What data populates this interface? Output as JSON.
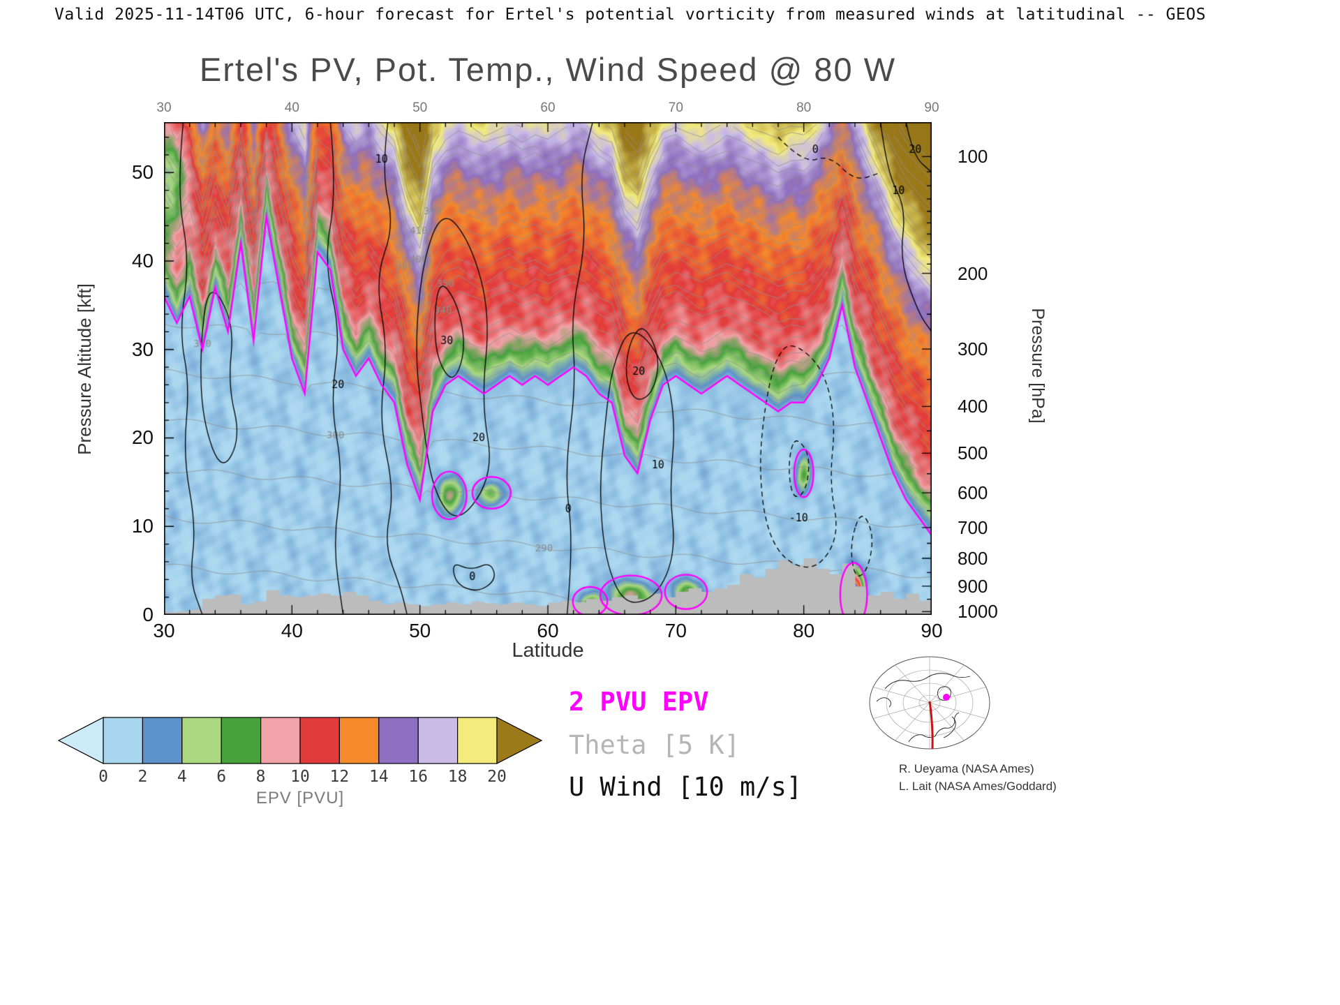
{
  "header": {
    "text": "Valid 2025-11-14T06 UTC, 6-hour forecast for Ertel's potential vorticity from measured winds at latitudinal -- GEOS"
  },
  "title": "Ertel's PV, Pot. Temp., Wind Speed @ 80 W",
  "axes": {
    "x": {
      "label": "Latitude",
      "min": 30,
      "max": 90,
      "major_ticks": [
        30,
        40,
        50,
        60,
        70,
        80,
        90
      ],
      "minor_step": 2
    },
    "y_left": {
      "label": "Pressure Altitude [kft]",
      "min": 0,
      "max": 55.7,
      "major_ticks": [
        0,
        10,
        20,
        30,
        40,
        50
      ],
      "minor_step": 2
    },
    "y_right": {
      "label": "Pressure [hPa]",
      "major_ticks": [
        100,
        200,
        300,
        400,
        500,
        600,
        700,
        800,
        900,
        1000
      ],
      "minor_ticks": [
        110,
        120,
        130,
        140,
        150,
        160,
        170,
        180,
        190,
        250,
        350,
        450,
        550,
        650,
        750,
        850,
        950
      ]
    }
  },
  "colorbar": {
    "label": "EPV [PVU]",
    "tick_values": [
      0,
      2,
      4,
      6,
      8,
      10,
      12,
      14,
      16,
      18,
      20
    ],
    "band_colors": [
      "#a9d6ef",
      "#5d92cb",
      "#abd881",
      "#47a23d",
      "#f2a3a9",
      "#e23b3b",
      "#f58a2c",
      "#8f6fc0",
      "#cabce6",
      "#f3ec7c"
    ],
    "under_color": "#cdeaf8",
    "over_color": "#9c7a1a"
  },
  "legend": {
    "items": [
      {
        "label": "2 PVU EPV",
        "color": "#ff00ff",
        "bold": true
      },
      {
        "label": "Theta [5 K]",
        "color": "#b5b5b5",
        "bold": false
      },
      {
        "label": "U Wind [10 m/s]",
        "color": "#111111",
        "bold": false
      }
    ]
  },
  "credits": {
    "line1": "R. Ueyama (NASA Ames)",
    "line2": "L. Lait (NASA Ames/Goddard)"
  },
  "map_inset": {
    "cross_section_color": "#cc1111",
    "location_color": "#ff00ff"
  },
  "chart_data": {
    "type": "heatmap",
    "title": "Ertel's PV, Pot. Temp., Wind Speed @ 80 W",
    "valid_time": "2025-11-14T06 UTC",
    "forecast": "6-hour forecast",
    "cross_section_longitude": "80 W",
    "xlabel": "Latitude",
    "x_range": [
      30,
      90
    ],
    "ylabel_left": "Pressure Altitude [kft]",
    "y_left_range_kft": [
      0,
      55.7
    ],
    "ylabel_right": "Pressure [hPa]",
    "y_right_ticks_hpa": [
      100,
      200,
      300,
      400,
      500,
      600,
      700,
      800,
      900,
      1000
    ],
    "fill_quantity": "Ertel potential vorticity EPV [PVU]",
    "fill_levels_pvu": [
      0,
      2,
      4,
      6,
      8,
      10,
      12,
      14,
      16,
      18,
      20
    ],
    "overlays": [
      {
        "name": "2 PVU EPV contour",
        "color": "#ff00ff"
      },
      {
        "name": "Theta contours",
        "interval": "5 K",
        "color": "#b5b5b5"
      },
      {
        "name": "U wind contours",
        "interval": "10 m/s",
        "color": "#000000"
      }
    ],
    "grid": {
      "lat_start": 30,
      "lat_step": 1,
      "n": 61
    },
    "tropopause_2pvu": {
      "alt_kft": [
        36,
        33,
        36,
        30,
        37,
        32,
        42,
        31,
        45,
        37,
        29,
        25,
        41,
        39,
        30,
        27,
        29,
        26,
        24,
        17,
        13,
        23,
        26,
        27,
        26,
        25,
        26,
        27,
        26,
        27,
        26,
        27,
        28,
        27,
        25,
        24,
        18,
        16,
        22,
        26,
        27,
        26,
        25,
        26,
        27,
        26,
        25,
        24,
        23,
        24,
        24,
        26,
        29,
        35,
        28,
        24,
        20,
        16,
        13,
        11,
        9
      ]
    },
    "terrain_alt_kft": [
      0.3,
      0.4,
      0.6,
      1.8,
      2.2,
      2.3,
      1.2,
      1.5,
      2.8,
      2.2,
      2.0,
      2.2,
      2.4,
      2.2,
      2.6,
      2.2,
      1.6,
      1.2,
      1.4,
      1.2,
      1.0,
      1.2,
      1.4,
      1.2,
      1.5,
      1.3,
      1.2,
      1.4,
      1.2,
      1.0,
      1.4,
      1.6,
      1.4,
      1.8,
      1.6,
      2.0,
      2.2,
      1.8,
      2.4,
      2.0,
      2.6,
      3.0,
      2.6,
      3.0,
      3.4,
      4.6,
      4.2,
      5.2,
      6.2,
      5.6,
      6.4,
      5.2,
      4.6,
      5.8,
      3.2,
      2.2,
      2.6,
      1.8,
      2.4,
      1.6,
      1.8
    ],
    "pv_anomalies": [
      {
        "lat": 52.3,
        "alt_kft": 13.5,
        "amp_pvu": 7,
        "w_lat": 0.9,
        "w_alt": 1.8
      },
      {
        "lat": 55.6,
        "alt_kft": 13.8,
        "amp_pvu": 5,
        "w_lat": 1.0,
        "w_alt": 1.2
      },
      {
        "lat": 63.3,
        "alt_kft": 1.5,
        "amp_pvu": 5,
        "w_lat": 0.9,
        "w_alt": 1.1
      },
      {
        "lat": 66.5,
        "alt_kft": 2.2,
        "amp_pvu": 7,
        "w_lat": 1.6,
        "w_alt": 1.5
      },
      {
        "lat": 70.8,
        "alt_kft": 2.6,
        "amp_pvu": 6,
        "w_lat": 1.1,
        "w_alt": 1.3
      },
      {
        "lat": 80.0,
        "alt_kft": 16.0,
        "amp_pvu": 6,
        "w_lat": 0.5,
        "w_alt": 1.8
      },
      {
        "lat": 83.9,
        "alt_kft": 2.3,
        "amp_pvu": 18,
        "w_lat": 0.7,
        "w_alt": 2.4
      },
      {
        "lat": 30.3,
        "alt_kft": 50.0,
        "amp_pvu": -7,
        "w_lat": 1.6,
        "w_alt": 7.0
      }
    ],
    "theta": {
      "surface_K": 280,
      "lapse_K_per_kft": 0.91,
      "lat_gradient_K_per_deg": 0.1,
      "stratosphere_extra_K_per_kft": 3.0,
      "level_min_K": 280,
      "level_max_K": 460,
      "level_step_K": 5,
      "labeled": [
        {
          "level": 410,
          "lat": 49.9
        },
        {
          "level": 400,
          "lat": 49.9
        },
        {
          "level": 390,
          "lat": 51.0
        },
        {
          "level": 380,
          "lat": 48.8
        },
        {
          "level": 350,
          "lat": 52.0
        },
        {
          "level": 340,
          "lat": 51.8
        },
        {
          "level": 310,
          "lat": 33.0
        },
        {
          "level": 300,
          "lat": 43.4
        },
        {
          "level": 290,
          "lat": 59.7
        }
      ]
    },
    "wind_contours": [
      {
        "label": "10",
        "label_at": [
          47.0,
          51.5
        ],
        "dashed": false,
        "closed": false,
        "pts": [
          [
            47.5,
            55.7
          ],
          [
            47.0,
            50
          ],
          [
            48.0,
            44
          ],
          [
            46.5,
            38
          ],
          [
            47.5,
            30
          ],
          [
            46.8,
            22
          ],
          [
            48.0,
            14
          ],
          [
            47.2,
            8
          ],
          [
            48.5,
            3
          ],
          [
            49.0,
            0
          ]
        ]
      },
      {
        "label": "20",
        "label_at": [
          54.6,
          20
        ],
        "dashed": false,
        "closed": true,
        "pts": [
          [
            51.8,
            46
          ],
          [
            54.0,
            42
          ],
          [
            55.5,
            34
          ],
          [
            54.8,
            24
          ],
          [
            55.8,
            16
          ],
          [
            53.0,
            10
          ],
          [
            51.0,
            14
          ],
          [
            50.2,
            22
          ],
          [
            49.6,
            30
          ],
          [
            50.2,
            40
          ]
        ]
      },
      {
        "label": "30",
        "label_at": [
          52.1,
          31
        ],
        "dashed": false,
        "closed": true,
        "pts": [
          [
            51.6,
            38
          ],
          [
            53.0,
            35
          ],
          [
            53.6,
            30
          ],
          [
            52.6,
            26
          ],
          [
            51.3,
            29
          ],
          [
            51.1,
            34
          ]
        ]
      },
      {
        "label": "0",
        "label_at": [
          61.6,
          12
        ],
        "dashed": false,
        "closed": false,
        "pts": [
          [
            61.5,
            0
          ],
          [
            62.0,
            8
          ],
          [
            61.3,
            16
          ],
          [
            62.2,
            26
          ],
          [
            61.8,
            34
          ],
          [
            63.0,
            42
          ],
          [
            62.5,
            50
          ],
          [
            63.5,
            55.7
          ]
        ]
      },
      {
        "label": "10",
        "label_at": [
          68.6,
          17
        ],
        "dashed": false,
        "closed": true,
        "pts": [
          [
            66.5,
            33
          ],
          [
            69.0,
            29
          ],
          [
            70.0,
            22
          ],
          [
            69.5,
            14
          ],
          [
            70.0,
            7
          ],
          [
            68.5,
            2
          ],
          [
            66.0,
            1
          ],
          [
            64.5,
            6
          ],
          [
            64.0,
            14
          ],
          [
            64.5,
            22
          ],
          [
            65.0,
            28
          ]
        ]
      },
      {
        "label": "20",
        "label_at": [
          67.1,
          27.5
        ],
        "dashed": false,
        "closed": true,
        "pts": [
          [
            67.5,
            33
          ],
          [
            68.8,
            29
          ],
          [
            68.2,
            25
          ],
          [
            66.8,
            24
          ],
          [
            66.0,
            27
          ],
          [
            66.4,
            31
          ]
        ]
      },
      {
        "label": "-10",
        "label_at": [
          79.6,
          11
        ],
        "dashed": true,
        "closed": true,
        "pts": [
          [
            79.0,
            31
          ],
          [
            81.5,
            28
          ],
          [
            82.5,
            22
          ],
          [
            82.0,
            15
          ],
          [
            82.8,
            9
          ],
          [
            81.0,
            5
          ],
          [
            78.5,
            6
          ],
          [
            77.0,
            10
          ],
          [
            76.5,
            17
          ],
          [
            77.0,
            24
          ],
          [
            77.8,
            29
          ]
        ]
      },
      {
        "label": "",
        "label_at": null,
        "dashed": true,
        "closed": true,
        "pts": [
          [
            79.5,
            20
          ],
          [
            80.5,
            18
          ],
          [
            80.2,
            14
          ],
          [
            79.2,
            13
          ],
          [
            78.8,
            16
          ],
          [
            79.0,
            19
          ]
        ]
      },
      {
        "label": "10",
        "label_at": [
          87.4,
          48
        ],
        "dashed": false,
        "closed": false,
        "pts": [
          [
            86.0,
            55.7
          ],
          [
            86.5,
            50
          ],
          [
            88.0,
            46
          ],
          [
            87.5,
            40
          ],
          [
            89.0,
            34
          ],
          [
            90.0,
            32
          ]
        ]
      },
      {
        "label": "20",
        "label_at": [
          88.7,
          52.6
        ],
        "dashed": false,
        "closed": false,
        "pts": [
          [
            88.0,
            55.7
          ],
          [
            88.5,
            52
          ],
          [
            90.0,
            50
          ]
        ]
      },
      {
        "label": "",
        "label_at": null,
        "dashed": false,
        "closed": false,
        "pts": [
          [
            31.5,
            55.7
          ],
          [
            31.0,
            48
          ],
          [
            32.0,
            40
          ],
          [
            31.2,
            32
          ],
          [
            32.0,
            26
          ],
          [
            31.5,
            18
          ],
          [
            32.5,
            10
          ],
          [
            32.0,
            4
          ],
          [
            33.0,
            0
          ]
        ]
      },
      {
        "label": "",
        "label_at": null,
        "dashed": false,
        "closed": true,
        "pts": [
          [
            33.5,
            38
          ],
          [
            35.5,
            33
          ],
          [
            35.0,
            26
          ],
          [
            36.0,
            20
          ],
          [
            34.5,
            16
          ],
          [
            33.0,
            22
          ],
          [
            32.8,
            30
          ]
        ]
      },
      {
        "label": "20",
        "label_at": [
          43.6,
          26
        ],
        "dashed": false,
        "closed": false,
        "pts": [
          [
            43.0,
            55.7
          ],
          [
            43.5,
            48
          ],
          [
            42.5,
            40
          ],
          [
            43.8,
            32
          ],
          [
            43.0,
            24
          ],
          [
            44.0,
            16
          ],
          [
            43.2,
            8
          ],
          [
            44.0,
            0
          ]
        ]
      },
      {
        "label": "0",
        "label_at": [
          54.1,
          4.3
        ],
        "dashed": false,
        "closed": true,
        "pts": [
          [
            52.5,
            6
          ],
          [
            54.0,
            5
          ],
          [
            55.5,
            6
          ],
          [
            56.0,
            4
          ],
          [
            54.5,
            2.5
          ],
          [
            52.8,
            3.5
          ]
        ]
      },
      {
        "label": "0",
        "label_at": [
          80.9,
          52.6
        ],
        "dashed": true,
        "closed": false,
        "pts": [
          [
            78.0,
            54
          ],
          [
            80.0,
            51
          ],
          [
            82.0,
            52
          ],
          [
            84.0,
            49
          ],
          [
            86.0,
            50
          ]
        ]
      },
      {
        "label": "",
        "label_at": null,
        "dashed": true,
        "closed": true,
        "pts": [
          [
            84.5,
            12
          ],
          [
            85.5,
            9
          ],
          [
            85.0,
            5
          ],
          [
            84.0,
            4
          ],
          [
            83.6,
            8
          ]
        ]
      }
    ]
  }
}
